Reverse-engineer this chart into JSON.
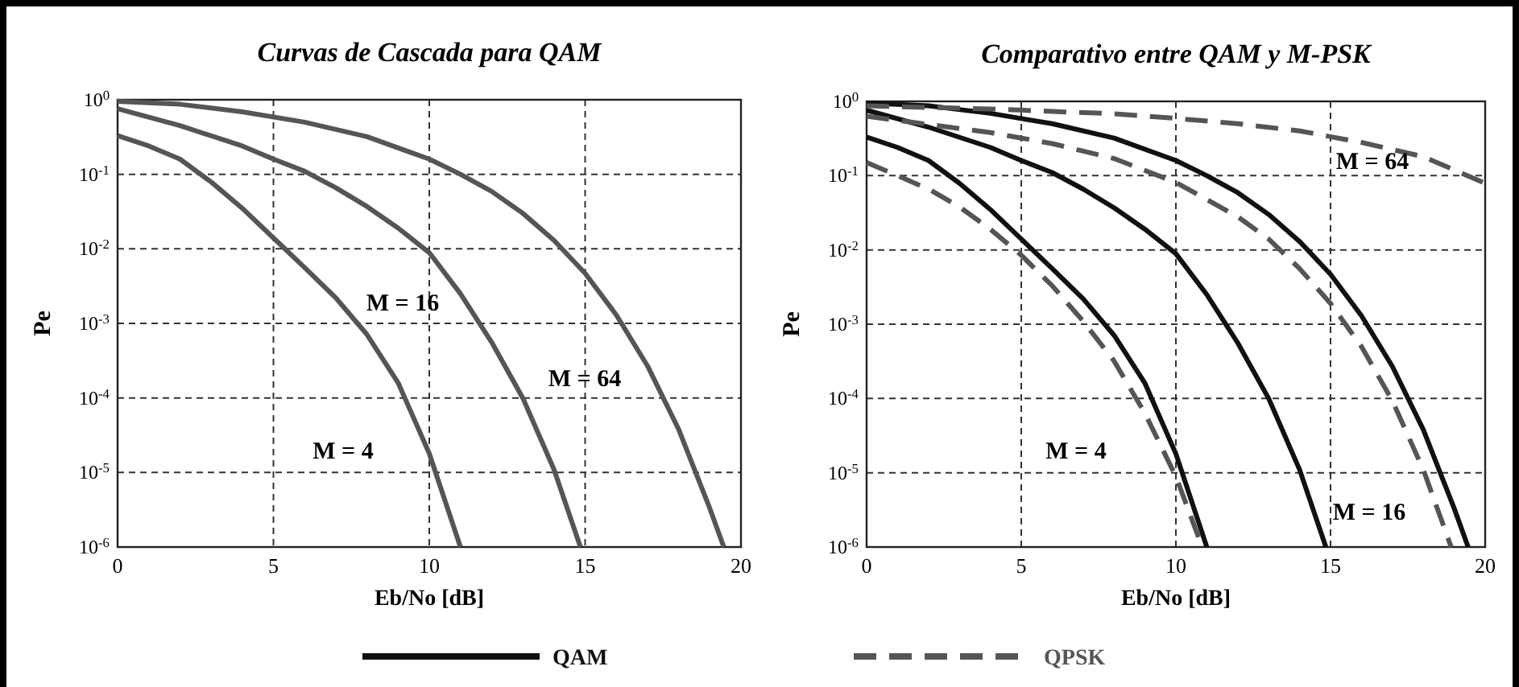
{
  "chart_data": [
    {
      "type": "line",
      "title": "Curvas de Cascada para QAM",
      "xlabel": "Eb/No [dB]",
      "ylabel": "Pe",
      "log": "y",
      "grid": true,
      "xlim": [
        0,
        20
      ],
      "xticks": [
        0,
        5,
        10,
        15,
        20
      ],
      "ylim": [
        1e-06,
        1
      ],
      "yticks": [
        {
          "value": 1,
          "label": "10$^{0}$"
        },
        {
          "value": 0.1,
          "label": "10$^{-1}$"
        },
        {
          "value": 0.01,
          "label": "10$^{-2}$"
        },
        {
          "value": 0.001,
          "label": "10$^{-3}$"
        },
        {
          "value": 0.0001,
          "label": "10$^{-4}$"
        },
        {
          "value": 1e-05,
          "label": "10$^{-5}$"
        },
        {
          "value": 1e-06,
          "label": "10$^{-6}$"
        }
      ],
      "series": [
        {
          "color": "#555555",
          "line_style": "solid",
          "x": [
            0,
            1,
            2,
            3,
            4,
            5,
            6,
            7,
            8,
            9,
            10,
            11
          ],
          "values": [
            0.33,
            0.24,
            0.16,
            0.079,
            0.035,
            0.014,
            0.0056,
            0.0022,
            0.00071,
            0.00016,
            1.8e-05,
            1e-06
          ]
        },
        {
          "color": "#555555",
          "line_style": "solid",
          "x": [
            0,
            2,
            4,
            5,
            6,
            7,
            8,
            9,
            10,
            11,
            12,
            13,
            14,
            14.85
          ],
          "values": [
            0.76,
            0.45,
            0.24,
            0.16,
            0.11,
            0.066,
            0.037,
            0.019,
            0.0089,
            0.0025,
            0.00056,
            0.0001,
            1.1e-05,
            1e-06
          ]
        },
        {
          "color": "#555555",
          "line_style": "solid",
          "x": [
            0,
            2,
            4,
            6,
            8,
            10,
            11,
            12,
            13,
            14,
            15,
            16,
            17,
            18,
            19,
            19.45
          ],
          "values": [
            0.95,
            0.87,
            0.69,
            0.5,
            0.32,
            0.16,
            0.1,
            0.059,
            0.03,
            0.013,
            0.0047,
            0.0013,
            0.00027,
            3.8e-05,
            3.3e-06,
            1e-06
          ]
        }
      ],
      "annotations": [
        "M = 16",
        "M = 64",
        "M = 4"
      ]
    },
    {
      "type": "line",
      "title": "Comparativo entre QAM y M-PSK",
      "xlabel": "Eb/No [dB]",
      "ylabel": "Pe",
      "log": "y",
      "grid": true,
      "legend": "bottom",
      "xlim": [
        0,
        20
      ],
      "xticks": [
        0,
        5,
        10,
        15,
        20
      ],
      "ylim": [
        1e-06,
        1
      ],
      "yticks": [
        {
          "value": 1,
          "label": "10$^{0}$"
        },
        {
          "value": 0.1,
          "label": "10$^{-1}$"
        },
        {
          "value": 0.01,
          "label": "10$^{-2}$"
        },
        {
          "value": 0.001,
          "label": "10$^{-3}$"
        },
        {
          "value": 0.0001,
          "label": "10$^{-4}$"
        },
        {
          "value": 1e-05,
          "label": "10$^{-5}$"
        },
        {
          "value": 1e-06,
          "label": "10$^{-6}$"
        }
      ],
      "series": [
        {
          "name": "QAM",
          "color": "#111111",
          "line_style": "solid",
          "x": [
            0,
            1,
            2,
            3,
            4,
            5,
            6,
            7,
            8,
            9,
            10,
            11
          ],
          "values": [
            0.33,
            0.24,
            0.16,
            0.079,
            0.035,
            0.014,
            0.0056,
            0.0022,
            0.00071,
            0.00016,
            1.8e-05,
            1e-06
          ]
        },
        {
          "color": "#111111",
          "line_style": "solid",
          "x": [
            0,
            2,
            4,
            5,
            6,
            7,
            8,
            9,
            10,
            11,
            12,
            13,
            14,
            14.85
          ],
          "values": [
            0.76,
            0.45,
            0.24,
            0.16,
            0.11,
            0.066,
            0.037,
            0.019,
            0.0089,
            0.0025,
            0.00056,
            0.0001,
            1.1e-05,
            1e-06
          ]
        },
        {
          "color": "#111111",
          "line_style": "solid",
          "x": [
            0,
            2,
            4,
            6,
            8,
            10,
            11,
            12,
            13,
            14,
            15,
            16,
            17,
            18,
            19,
            19.45
          ],
          "values": [
            0.95,
            0.87,
            0.69,
            0.5,
            0.32,
            0.16,
            0.1,
            0.059,
            0.03,
            0.013,
            0.0047,
            0.0013,
            0.00027,
            3.8e-05,
            3.3e-06,
            1e-06
          ]
        },
        {
          "name": "QPSK",
          "color": "#555555",
          "line_style": "dashed",
          "x": [
            0,
            1,
            2,
            3,
            4,
            5,
            6,
            7,
            8,
            9,
            10,
            10.85
          ],
          "values": [
            0.15,
            0.1,
            0.066,
            0.038,
            0.019,
            0.0085,
            0.0033,
            0.0011,
            0.00032,
            6.3e-05,
            8.9e-06,
            1e-06
          ]
        },
        {
          "color": "#555555",
          "line_style": "dashed",
          "x": [
            0,
            2,
            4,
            6,
            8,
            10,
            12,
            13,
            14,
            15,
            16,
            17,
            18,
            18.9
          ],
          "values": [
            0.63,
            0.49,
            0.38,
            0.27,
            0.17,
            0.081,
            0.028,
            0.014,
            0.0056,
            0.0019,
            0.0005,
            9.3e-05,
            1.1e-05,
            1e-06
          ]
        },
        {
          "color": "#555555",
          "line_style": "dashed",
          "x": [
            0,
            4,
            8,
            10,
            12,
            14,
            16,
            18,
            20
          ],
          "values": [
            0.87,
            0.79,
            0.68,
            0.59,
            0.5,
            0.4,
            0.28,
            0.18,
            0.079
          ]
        }
      ],
      "annotations": [
        "M = 64",
        "M = 4",
        "M = 16"
      ]
    }
  ]
}
